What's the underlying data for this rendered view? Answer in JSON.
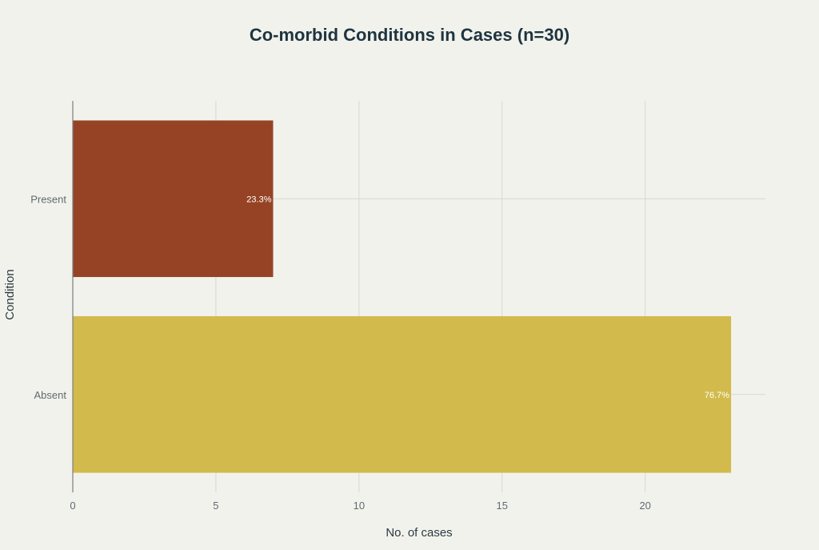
{
  "chart_data": {
    "type": "bar",
    "orientation": "horizontal",
    "title": "Co-morbid Conditions in Cases (n=30)",
    "xlabel": "No. of cases",
    "ylabel": "Condition",
    "categories": [
      "Present",
      "Absent"
    ],
    "values": [
      7,
      23
    ],
    "data_labels": [
      "23.3%",
      "76.7%"
    ],
    "colors": [
      "#964325",
      "#d2ba4c"
    ],
    "xlim": [
      0,
      24.2
    ],
    "xticks": [
      0,
      5,
      10,
      15,
      20
    ],
    "grid": true,
    "legend": "none"
  }
}
